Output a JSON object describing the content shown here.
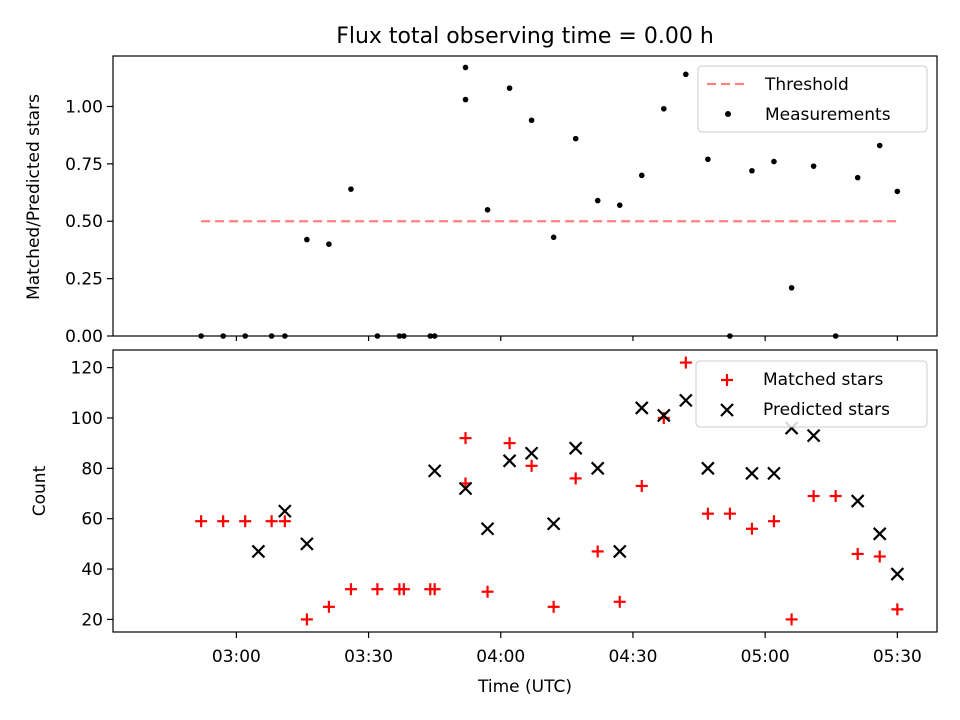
{
  "figure": {
    "title": "Flux total observing time = 0.00 h",
    "xlabel": "Time (UTC)"
  },
  "chart_data": [
    {
      "type": "scatter",
      "panel": "top",
      "title": "Flux total observing time = 0.00 h",
      "ylabel": "Matched/Predicted stars",
      "xlim_minutes_after_0300": [
        -28,
        159
      ],
      "ylim": [
        0,
        1.22
      ],
      "y_ticks": [
        "0.00",
        "0.25",
        "0.50",
        "0.75",
        "1.00"
      ],
      "y_tick_values": [
        0,
        0.25,
        0.5,
        0.75,
        1.0
      ],
      "legend_position": "top-right",
      "threshold": {
        "name": "Threshold",
        "value": 0.5,
        "x_start": "02:52",
        "x_end": "05:30",
        "color": "#ff8080",
        "style": "dashed"
      },
      "series": [
        {
          "name": "Measurements",
          "color": "#000000",
          "marker": "dot",
          "x": [
            "02:52",
            "02:57",
            "03:02",
            "03:08",
            "03:11",
            "03:16",
            "03:21",
            "03:26",
            "03:32",
            "03:37",
            "03:38",
            "03:44",
            "03:45",
            "03:52",
            "03:52",
            "03:57",
            "04:02",
            "04:07",
            "04:12",
            "04:17",
            "04:22",
            "04:27",
            "04:32",
            "04:37",
            "04:42",
            "04:47",
            "04:52",
            "04:57",
            "05:02",
            "05:06",
            "05:11",
            "05:16",
            "05:21",
            "05:26",
            "05:30"
          ],
          "y": [
            0,
            0,
            0,
            0,
            0,
            0.42,
            0.4,
            0.64,
            0,
            0,
            0,
            0,
            0,
            1.17,
            1.03,
            0.55,
            1.08,
            0.94,
            0.43,
            0.86,
            0.59,
            0.57,
            0.7,
            0.99,
            1.14,
            0.77,
            0,
            0.72,
            0.76,
            0.21,
            0.74,
            0,
            0.69,
            0.83,
            0.63
          ]
        }
      ]
    },
    {
      "type": "scatter",
      "panel": "bottom",
      "ylabel": "Count",
      "xlabel": "Time (UTC)",
      "x_ticks": [
        "03:00",
        "03:30",
        "04:00",
        "04:30",
        "05:00",
        "05:30"
      ],
      "xlim_minutes_after_0300": [
        -28,
        159
      ],
      "ylim": [
        15,
        127
      ],
      "y_ticks": [
        "20",
        "40",
        "60",
        "80",
        "100",
        "120"
      ],
      "y_tick_values": [
        20,
        40,
        60,
        80,
        100,
        120
      ],
      "legend_position": "top-right",
      "series": [
        {
          "name": "Matched stars",
          "color": "#ff0000",
          "marker": "plus",
          "x": [
            "02:52",
            "02:57",
            "03:02",
            "03:08",
            "03:11",
            "03:16",
            "03:21",
            "03:26",
            "03:32",
            "03:37",
            "03:38",
            "03:44",
            "03:45",
            "03:52",
            "03:52",
            "03:57",
            "04:02",
            "04:07",
            "04:12",
            "04:17",
            "04:22",
            "04:27",
            "04:32",
            "04:37",
            "04:42",
            "04:47",
            "04:52",
            "04:57",
            "05:02",
            "05:06",
            "05:11",
            "05:16",
            "05:21",
            "05:26",
            "05:30"
          ],
          "y": [
            59,
            59,
            59,
            59,
            59,
            20,
            25,
            32,
            32,
            32,
            32,
            32,
            32,
            92,
            74,
            31,
            90,
            81,
            25,
            76,
            47,
            27,
            73,
            100,
            122,
            62,
            62,
            56,
            59,
            20,
            69,
            69,
            46,
            45,
            24
          ]
        },
        {
          "name": "Predicted stars",
          "color": "#000000",
          "marker": "x",
          "x": [
            "03:05",
            "03:11",
            "03:16",
            "03:45",
            "03:52",
            "03:57",
            "04:02",
            "04:07",
            "04:12",
            "04:17",
            "04:22",
            "04:27",
            "04:32",
            "04:37",
            "04:42",
            "04:47",
            "04:57",
            "05:02",
            "05:06",
            "05:11",
            "05:21",
            "05:26",
            "05:30"
          ],
          "y": [
            47,
            63,
            50,
            79,
            72,
            56,
            83,
            86,
            58,
            88,
            80,
            47,
            104,
            101,
            107,
            80,
            78,
            78,
            96,
            93,
            67,
            54,
            38
          ]
        }
      ]
    }
  ]
}
